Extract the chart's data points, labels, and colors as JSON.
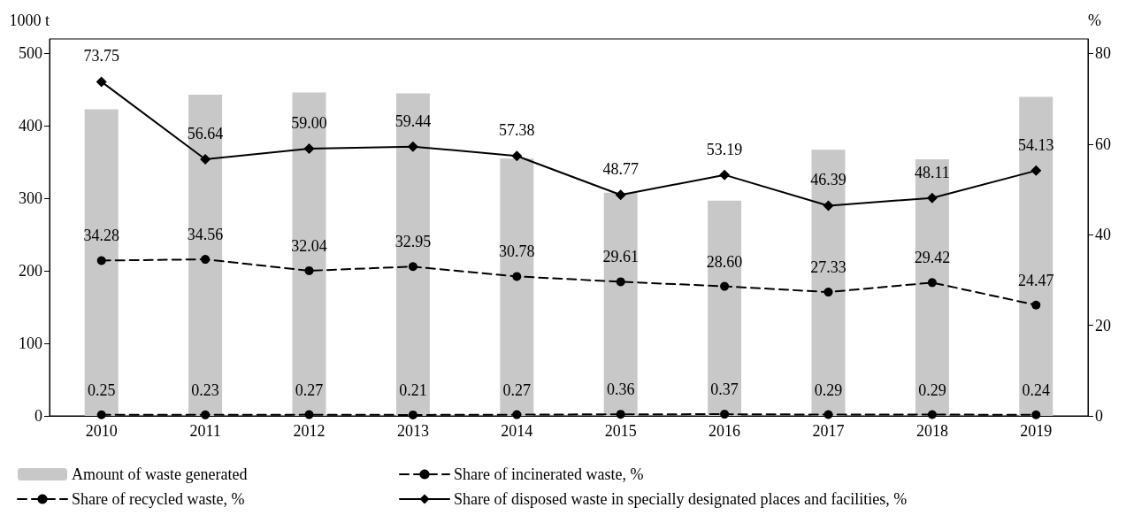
{
  "chart_data": {
    "type": "bar",
    "ylabel": "1000 t",
    "y2label": "%",
    "categories": [
      "2010",
      "2011",
      "2012",
      "2013",
      "2014",
      "2015",
      "2016",
      "2017",
      "2018",
      "2019"
    ],
    "series": [
      {
        "name": "Amount of waste generated",
        "color": "#c8c8c8",
        "values": [
          423,
          443,
          446,
          445,
          355,
          308,
          297,
          367,
          354,
          440
        ]
      },
      {
        "name": "Share of recycled waste, %",
        "type": "line",
        "axis": "y2",
        "color": "#000000",
        "line_style": "dashed",
        "marker": "circle",
        "values": [
          34.28,
          34.56,
          32.04,
          32.95,
          30.78,
          29.61,
          28.6,
          27.33,
          29.42,
          24.47
        ],
        "value_labels": [
          "34.28",
          "34.56",
          "32.04",
          "32.95",
          "30.78",
          "29.61",
          "28.60",
          "27.33",
          "29.42",
          "24.47"
        ]
      },
      {
        "name": "Share of incinerated waste, %",
        "type": "line",
        "axis": "y2",
        "color": "#000000",
        "line_style": "dashed",
        "marker": "circle",
        "values": [
          0.25,
          0.23,
          0.27,
          0.21,
          0.27,
          0.36,
          0.37,
          0.29,
          0.29,
          0.24
        ],
        "value_labels": [
          "0.25",
          "0.23",
          "0.27",
          "0.21",
          "0.27",
          "0.36",
          "0.37",
          "0.29",
          "0.29",
          "0.24"
        ]
      },
      {
        "name": "Share of disposed waste in specially designated places and facilities, %",
        "type": "line",
        "axis": "y2",
        "color": "#000000",
        "line_style": "solid",
        "marker": "diamond",
        "values": [
          73.75,
          56.64,
          59.0,
          59.44,
          57.38,
          48.77,
          53.19,
          46.39,
          48.11,
          54.13
        ],
        "value_labels": [
          "73.75",
          "56.64",
          "59.00",
          "59.44",
          "57.38",
          "48.77",
          "53.19",
          "46.39",
          "48.11",
          "54.13"
        ]
      }
    ],
    "ylim": [
      0,
      520
    ],
    "yticks": [
      0,
      100,
      200,
      300,
      400,
      500
    ],
    "y2lim": [
      0,
      83.2
    ],
    "y2ticks": [
      0,
      20,
      40,
      60,
      80
    ],
    "grid": false,
    "legend": "bottom"
  }
}
